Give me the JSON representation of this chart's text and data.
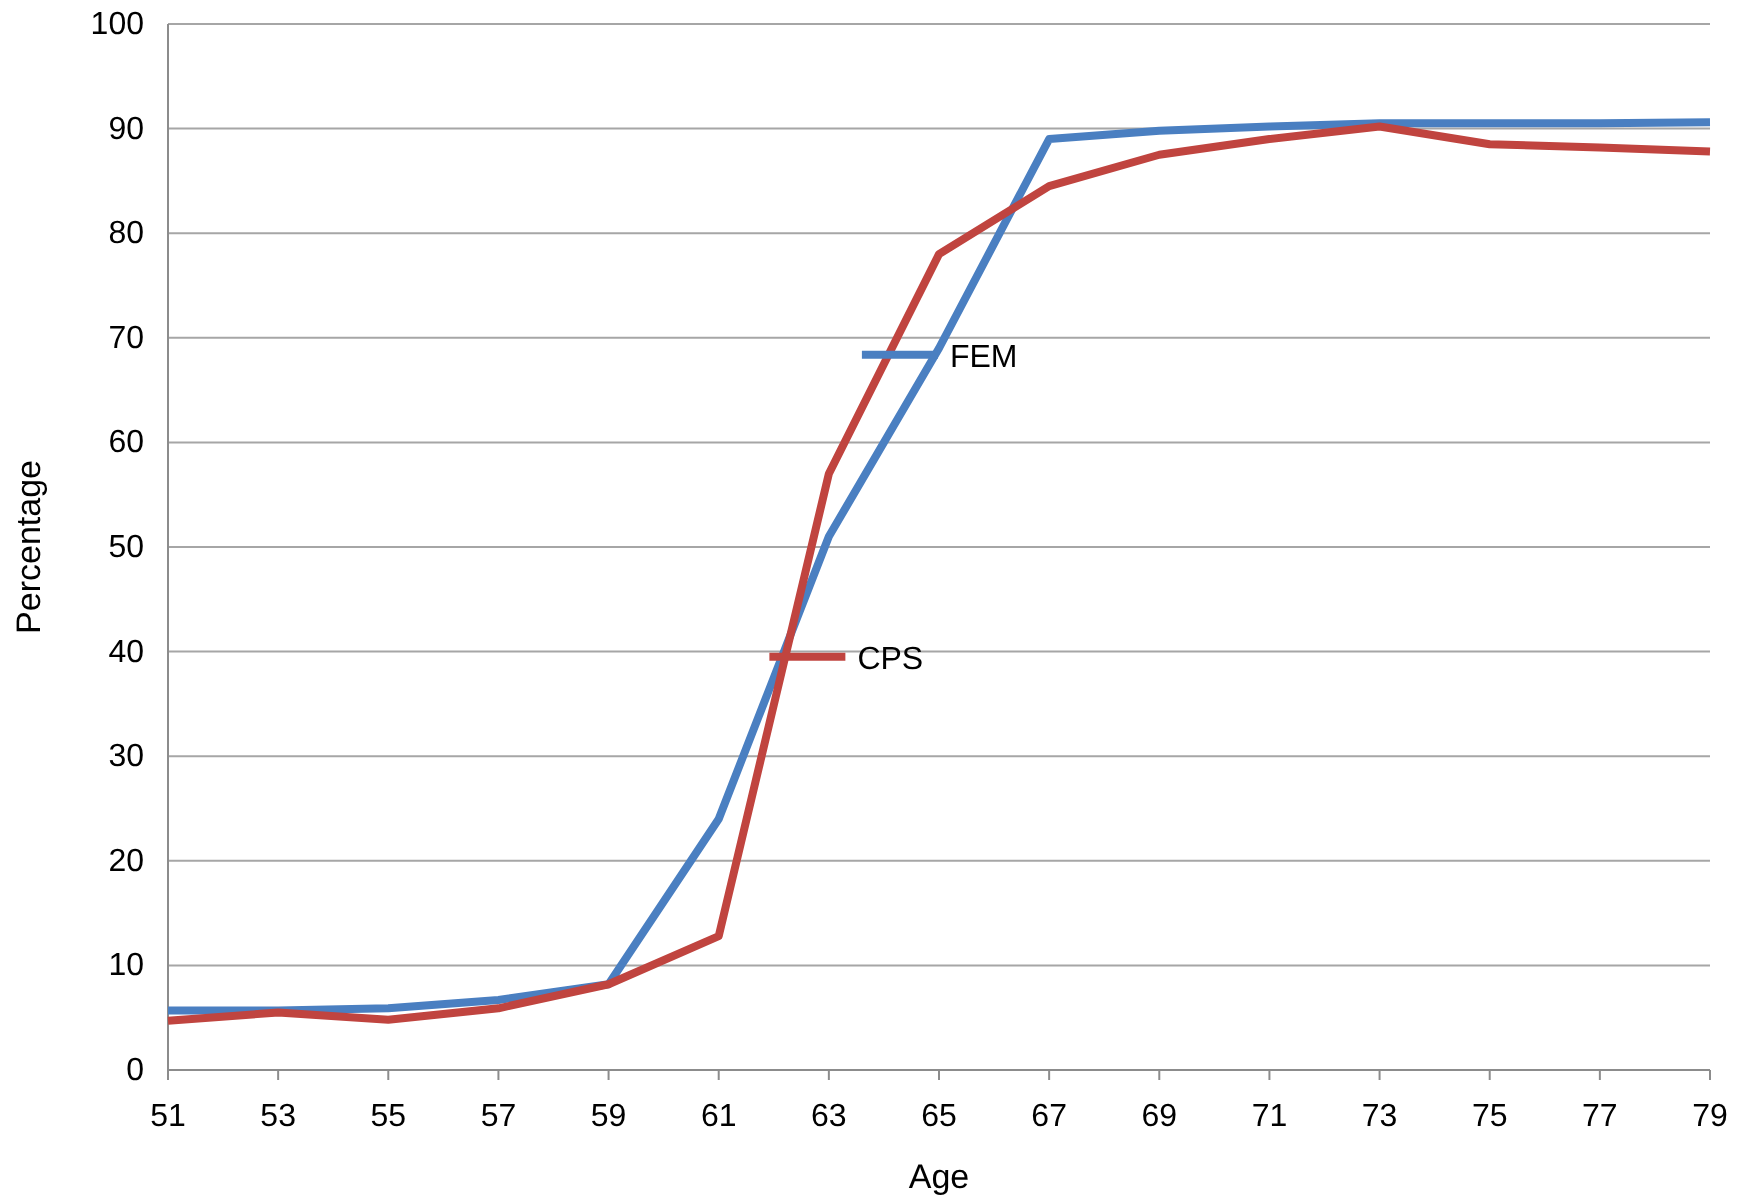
{
  "chart_data": {
    "type": "line",
    "xlabel": "Age",
    "ylabel": "Percentage",
    "x": [
      51,
      53,
      55,
      57,
      59,
      61,
      63,
      65,
      67,
      69,
      71,
      73,
      75,
      77,
      79
    ],
    "series": [
      {
        "name": "FEM",
        "color": "#4a7fc1",
        "values": [
          5.7,
          5.7,
          5.9,
          6.7,
          8.2,
          24,
          51,
          69,
          89,
          89.8,
          90.2,
          90.5,
          90.5,
          90.5,
          90.6
        ]
      },
      {
        "name": "CPS",
        "color": "#c0443f",
        "values": [
          4.7,
          5.5,
          4.8,
          5.9,
          8.2,
          12.8,
          57,
          78,
          84.5,
          87.5,
          89,
          90.2,
          88.5,
          88.2,
          87.8
        ]
      }
    ],
    "xlim": [
      51,
      79
    ],
    "xticks": [
      51,
      53,
      55,
      57,
      59,
      61,
      63,
      65,
      67,
      69,
      71,
      73,
      75,
      77,
      79
    ],
    "ylim": [
      0,
      100
    ],
    "yticks": [
      0,
      10,
      20,
      30,
      40,
      50,
      60,
      70,
      80,
      90,
      100
    ],
    "grid": "y",
    "legend": "center",
    "marker": "none",
    "line_style": "solid"
  }
}
